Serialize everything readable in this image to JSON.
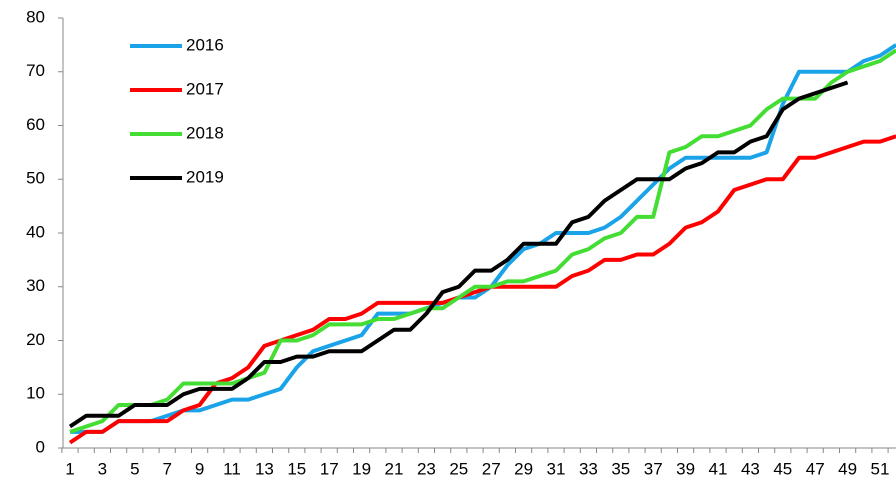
{
  "chart_data": {
    "type": "line",
    "categories": [
      1,
      null,
      3,
      null,
      5,
      null,
      7,
      null,
      9,
      null,
      11,
      null,
      13,
      null,
      15,
      null,
      17,
      null,
      19,
      null,
      21,
      null,
      23,
      null,
      25,
      null,
      27,
      null,
      29,
      null,
      31,
      null,
      33,
      null,
      35,
      null,
      37,
      null,
      39,
      null,
      41,
      null,
      43,
      null,
      45,
      null,
      47,
      null,
      49,
      null,
      51,
      null
    ],
    "series": [
      {
        "name": "2016",
        "color": "#1aa3e8",
        "values": [
          3,
          3,
          3,
          5,
          5,
          5,
          6,
          7,
          7,
          8,
          9,
          9,
          10,
          11,
          15,
          18,
          19,
          20,
          21,
          25,
          25,
          25,
          26,
          27,
          28,
          28,
          30,
          34,
          37,
          38,
          40,
          40,
          40,
          41,
          43,
          46,
          49,
          52,
          54,
          54,
          54,
          54,
          54,
          55,
          64,
          70,
          70,
          70,
          70,
          72,
          73,
          75
        ]
      },
      {
        "name": "2017",
        "color": "#ff0000",
        "values": [
          1,
          3,
          3,
          5,
          5,
          5,
          5,
          7,
          8,
          12,
          13,
          15,
          19,
          20,
          21,
          22,
          24,
          24,
          25,
          27,
          27,
          27,
          27,
          27,
          28,
          29,
          30,
          30,
          30,
          30,
          30,
          32,
          33,
          35,
          35,
          36,
          36,
          38,
          41,
          42,
          44,
          48,
          49,
          50,
          50,
          54,
          54,
          55,
          56,
          57,
          57,
          58
        ]
      },
      {
        "name": "2018",
        "color": "#44dd33",
        "values": [
          3,
          4,
          5,
          8,
          8,
          8,
          9,
          12,
          12,
          12,
          12,
          13,
          14,
          20,
          20,
          21,
          23,
          23,
          23,
          24,
          24,
          25,
          26,
          26,
          28,
          30,
          30,
          31,
          31,
          32,
          33,
          36,
          37,
          39,
          40,
          43,
          43,
          55,
          56,
          58,
          58,
          59,
          60,
          63,
          65,
          65,
          65,
          68,
          70,
          71,
          72,
          74
        ]
      },
      {
        "name": "2019",
        "color": "#000000",
        "values": [
          4,
          6,
          6,
          6,
          8,
          8,
          8,
          10,
          11,
          11,
          11,
          13,
          16,
          16,
          17,
          17,
          18,
          18,
          18,
          20,
          22,
          22,
          25,
          29,
          30,
          33,
          33,
          35,
          38,
          38,
          38,
          42,
          43,
          46,
          48,
          50,
          50,
          50,
          52,
          53,
          55,
          55,
          57,
          58,
          63,
          65,
          66,
          67,
          68,
          null,
          null,
          null
        ]
      }
    ],
    "ylim": [
      0,
      80
    ],
    "yticks": [
      0,
      10,
      20,
      30,
      40,
      50,
      60,
      70,
      80
    ],
    "legend": "upper-left"
  }
}
